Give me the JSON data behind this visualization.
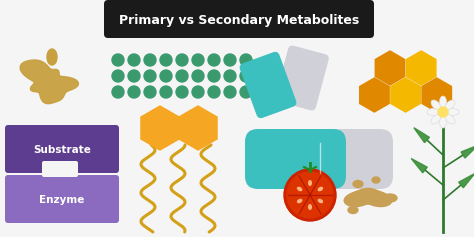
{
  "title": "Primary vs Secondary Metabolites",
  "title_bg": "#1a1a1a",
  "title_color": "#ffffff",
  "bg_color": "#f5f5f5",
  "substrate_color": "#5c3d8f",
  "enzyme_color": "#8b6bbf",
  "substrate_text": "Substrate",
  "enzyme_text": "Enzyme",
  "green_dot_color": "#3a9a6e",
  "orange_color": "#f5a623",
  "strand_color": "#d4a017",
  "capsule_teal": "#3bbfbf",
  "capsule_gray": "#d0d0d8",
  "honeycomb_dark": "#e08800",
  "honeycomb_light": "#f5b800",
  "tomato_red": "#cc2200",
  "tomato_inner": "#dd3300",
  "ginger_color": "#c8a055",
  "stem_color": "#2d7a2d",
  "leaf_color": "#3a8f3a",
  "blob_color": "#c8a040",
  "fig_width": 4.74,
  "fig_height": 2.37
}
